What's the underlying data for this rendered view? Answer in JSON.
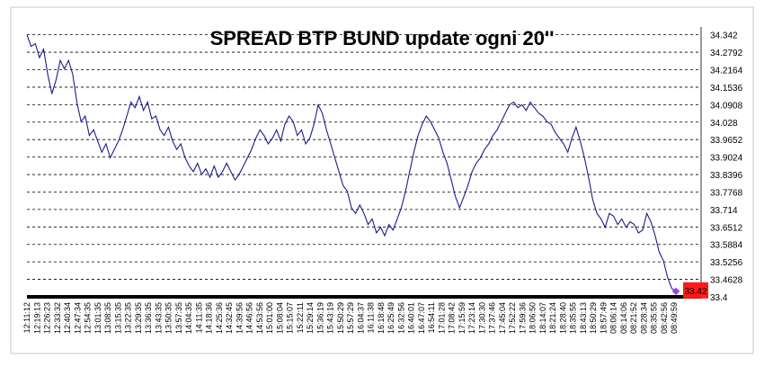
{
  "chart_data": {
    "type": "line",
    "title": "SPREAD BTP BUND update ogni 20''",
    "xlabel": "",
    "ylabel": "",
    "ylim": [
      33.4,
      34.37
    ],
    "y_ticks": [
      "34.342",
      "34.2792",
      "34.2164",
      "34.1536",
      "34.0908",
      "34.028",
      "33.9652",
      "33.9024",
      "33.8396",
      "33.7768",
      "33.714",
      "33.6512",
      "33.5884",
      "33.5256",
      "33.4628",
      "33.4"
    ],
    "x_ticks": [
      "12:11:12",
      "12:19:13",
      "12:26:23",
      "12:33:32",
      "12:40:34",
      "12:47:34",
      "12:54:35",
      "13:01:35",
      "13:08:35",
      "13:15:35",
      "13:22:35",
      "13:29:35",
      "13:36:35",
      "13:43:35",
      "13:50:35",
      "13:57:35",
      "14:04:35",
      "14:11:35",
      "14:18:36",
      "14:25:36",
      "14:32:45",
      "14:39:56",
      "14:46:56",
      "14:53:56",
      "15:01:00",
      "15:08:04",
      "15:15:07",
      "15:22:11",
      "15:29:14",
      "15:36:19",
      "15:43:19",
      "15:50:29",
      "15:57:29",
      "16:04:37",
      "16:11:38",
      "16:18:48",
      "16:25:49",
      "16:32:56",
      "16:40:01",
      "16:47:07",
      "16:54:11",
      "17:01:28",
      "17:08:42",
      "17:15:59",
      "17:23:14",
      "17:30:30",
      "17:37:46",
      "17:45:04",
      "17:52:22",
      "17:59:36",
      "18:06:50",
      "18:14:07",
      "18:21:24",
      "18:28:40",
      "18:35:55",
      "18:43:13",
      "18:50:29",
      "18:57:49",
      "08:06:14",
      "08:14:06",
      "08:21:52",
      "08:28:34",
      "08:35:55",
      "08:42:56",
      "08:49:59"
    ],
    "grid": "horizontal-dashed",
    "last_value_label": "33.42",
    "colors": {
      "line": "#1c1c8c",
      "last_label_bg": "#ff1a1a",
      "marker": "#9e3fd8",
      "baseline": "#000000"
    },
    "series": [
      {
        "values": [
          34.342,
          34.3,
          34.31,
          34.26,
          34.29,
          34.2,
          34.13,
          34.18,
          34.25,
          34.22,
          34.25,
          34.2,
          34.1,
          34.03,
          34.05,
          33.98,
          34.0,
          33.96,
          33.92,
          33.95,
          33.9,
          33.93,
          33.96,
          34.0,
          34.05,
          34.1,
          34.08,
          34.12,
          34.07,
          34.1,
          34.04,
          34.05,
          34.0,
          33.98,
          34.01,
          33.96,
          33.93,
          33.95,
          33.9,
          33.87,
          33.85,
          33.88,
          33.84,
          33.86,
          33.83,
          33.87,
          33.83,
          33.85,
          33.88,
          33.85,
          33.82,
          33.84,
          33.87,
          33.9,
          33.93,
          33.97,
          34.0,
          33.98,
          33.95,
          33.97,
          34.0,
          33.96,
          34.02,
          34.05,
          34.03,
          33.98,
          34.0,
          33.95,
          33.97,
          34.02,
          34.09,
          34.06,
          34.0,
          33.95,
          33.9,
          33.85,
          33.8,
          33.78,
          33.72,
          33.7,
          33.73,
          33.7,
          33.66,
          33.68,
          33.63,
          33.65,
          33.62,
          33.66,
          33.64,
          33.68,
          33.72,
          33.78,
          33.85,
          33.92,
          33.98,
          34.02,
          34.05,
          34.03,
          34.0,
          33.97,
          33.92,
          33.88,
          33.82,
          33.76,
          33.72,
          33.76,
          33.8,
          33.85,
          33.88,
          33.9,
          33.93,
          33.95,
          33.98,
          34.0,
          34.03,
          34.06,
          34.09,
          34.1,
          34.08,
          34.09,
          34.07,
          34.1,
          34.08,
          34.06,
          34.05,
          34.03,
          34.02,
          33.99,
          33.97,
          33.95,
          33.92,
          33.97,
          34.01,
          33.96,
          33.9,
          33.83,
          33.75,
          33.7,
          33.68,
          33.65,
          33.7,
          33.69,
          33.66,
          33.68,
          33.65,
          33.67,
          33.66,
          33.63,
          33.64,
          33.7,
          33.67,
          33.62,
          33.56,
          33.53,
          33.47,
          33.43,
          33.42
        ]
      }
    ]
  }
}
